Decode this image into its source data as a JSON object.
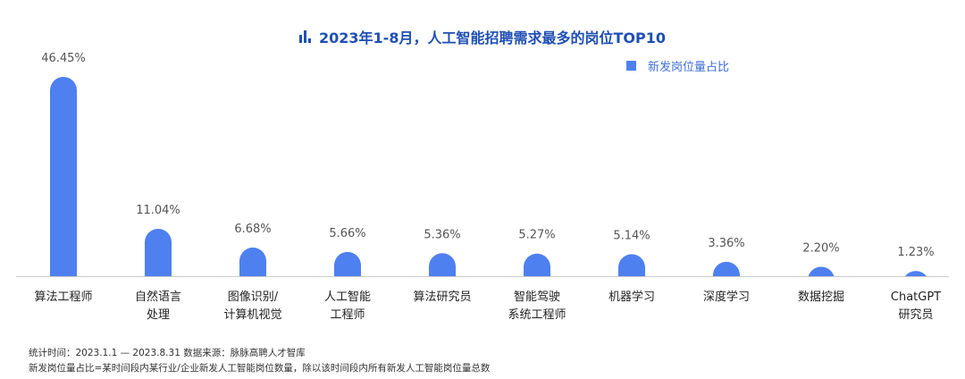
{
  "chart_data": {
    "type": "bar",
    "title": "2023年1-8月，人工智能招聘需求最多的岗位TOP10",
    "categories": [
      [
        "算法工程师"
      ],
      [
        "自然语言",
        "处理"
      ],
      [
        "图像识别/",
        "计算机视觉"
      ],
      [
        "人工智能",
        "工程师"
      ],
      [
        "算法研究员"
      ],
      [
        "智能驾驶",
        "系统工程师"
      ],
      [
        "机器学习"
      ],
      [
        "深度学习"
      ],
      [
        "数据挖掘"
      ],
      [
        "ChatGPT",
        "研究员"
      ]
    ],
    "values": [
      46.45,
      11.04,
      6.68,
      5.66,
      5.36,
      5.27,
      5.14,
      3.36,
      2.2,
      1.23
    ],
    "value_labels": [
      "46.45%",
      "11.04%",
      "6.68%",
      "5.66%",
      "5.36%",
      "5.27%",
      "5.14%",
      "3.36%",
      "2.20%",
      "1.23%"
    ],
    "series": [
      {
        "name": "新发岗位量占比"
      }
    ],
    "legend_position": "top-right",
    "grid": false,
    "color": "#4e80f0"
  },
  "title_icon": "bar-chart-icon",
  "footnotes": [
    "统计时间：2023.1.1 — 2023.8.31  数据来源：脉脉高聘人才智库",
    "新发岗位量占比=某时间段内某行业/企业新发人工智能岗位数量，除以该时间段内所有新发人工智能岗位量总数"
  ]
}
